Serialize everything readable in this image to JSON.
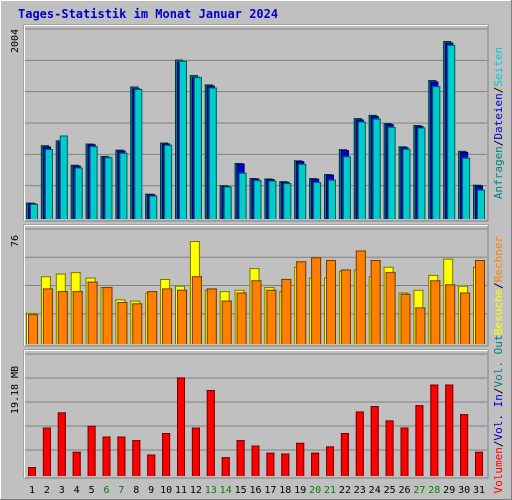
{
  "title": "Tages-Statistik im Monat Januar 2024",
  "colors": {
    "anfragen": "#008080",
    "dateien": "#0000cc",
    "seiten": "#00cccc",
    "besuche": "#ffff00",
    "rechner": "#ff8000",
    "volumen": "#ff0000",
    "voleIn": "#0000cc",
    "volOut": "#008080",
    "weekend": "#008000"
  },
  "chart_data": [
    {
      "type": "bar",
      "categories": [
        "1",
        "2",
        "3",
        "4",
        "5",
        "6",
        "7",
        "8",
        "9",
        "10",
        "11",
        "12",
        "13",
        "14",
        "15",
        "16",
        "17",
        "18",
        "19",
        "20",
        "21",
        "22",
        "23",
        "24",
        "25",
        "26",
        "27",
        "28",
        "29",
        "30",
        "31"
      ],
      "weekend_days": [
        "6",
        "7",
        "13",
        "14",
        "20",
        "21",
        "27",
        "28"
      ],
      "ymax_label": "2004",
      "ylim": [
        0,
        2004
      ],
      "legend": [
        "Anfragen",
        "Dateien",
        "Seiten"
      ],
      "legend_separator": "/",
      "series": [
        {
          "name": "Anfragen",
          "values": [
            184,
            830,
            885,
            610,
            850,
            710,
            780,
            1492,
            284,
            860,
            1795,
            1620,
            1515,
            380,
            630,
            461,
            456,
            425,
            660,
            460,
            505,
            785,
            1136,
            1172,
            1080,
            818,
            1058,
            1565,
            2004,
            767,
            385
          ]
        },
        {
          "name": "Dateien",
          "values": [
            178,
            815,
            870,
            600,
            840,
            700,
            770,
            1470,
            278,
            850,
            1770,
            1600,
            1500,
            372,
            622,
            455,
            450,
            418,
            650,
            452,
            498,
            775,
            1120,
            1158,
            1068,
            808,
            1045,
            1548,
            1985,
            755,
            378
          ]
        },
        {
          "name": "Seiten",
          "values": [
            170,
            788,
            940,
            580,
            820,
            695,
            745,
            1463,
            263,
            835,
            1780,
            1596,
            1480,
            365,
            520,
            437,
            432,
            404,
            620,
            416,
            442,
            705,
            1098,
            1130,
            1038,
            790,
            1030,
            1495,
            1960,
            690,
            330
          ]
        }
      ]
    },
    {
      "type": "bar",
      "categories": [
        "1",
        "2",
        "3",
        "4",
        "5",
        "6",
        "7",
        "8",
        "9",
        "10",
        "11",
        "12",
        "13",
        "14",
        "15",
        "16",
        "17",
        "18",
        "19",
        "20",
        "21",
        "22",
        "23",
        "24",
        "25",
        "26",
        "27",
        "28",
        "29",
        "30",
        "31"
      ],
      "ymax_label": "76",
      "ylim": [
        0,
        76
      ],
      "legend": [
        "Besuche",
        "Rechner"
      ],
      "legend_separator": "/",
      "series": [
        {
          "name": "Besuche",
          "values": [
            23,
            50,
            52,
            53,
            49,
            42,
            33,
            32,
            38,
            48,
            43,
            76,
            40,
            39,
            40,
            56,
            42,
            39,
            57,
            49,
            49,
            54,
            55,
            50,
            57,
            38,
            40,
            51,
            63,
            43,
            57
          ]
        },
        {
          "name": "Rechner",
          "values": [
            22,
            41,
            39,
            39,
            46,
            42,
            31,
            30,
            39,
            41,
            40,
            50,
            41,
            32,
            38,
            47,
            40,
            48,
            61,
            64,
            62,
            55,
            69,
            62,
            53,
            37,
            27,
            47,
            44,
            38,
            62
          ]
        }
      ]
    },
    {
      "type": "bar",
      "categories": [
        "1",
        "2",
        "3",
        "4",
        "5",
        "6",
        "7",
        "8",
        "9",
        "10",
        "11",
        "12",
        "13",
        "14",
        "15",
        "16",
        "17",
        "18",
        "19",
        "20",
        "21",
        "22",
        "23",
        "24",
        "25",
        "26",
        "27",
        "28",
        "29",
        "30",
        "31"
      ],
      "ymax_label": "19.18 MB",
      "ylim": [
        0,
        19.18
      ],
      "legend": [
        "Volumen",
        "Vol. In",
        "Vol. Out"
      ],
      "legend_separator": "/",
      "series": [
        {
          "name": "Volumen",
          "values": [
            1.56,
            8.44,
            11.09,
            4.22,
            8.75,
            6.88,
            6.88,
            6.25,
            3.75,
            7.5,
            17.19,
            8.44,
            15.0,
            3.28,
            6.25,
            5.31,
            4.06,
            3.91,
            5.78,
            4.06,
            5.16,
            7.5,
            11.25,
            12.19,
            9.69,
            8.44,
            12.34,
            15.94,
            15.94,
            10.78,
            4.22
          ]
        }
      ]
    }
  ],
  "x_axis_labels": [
    "1",
    "2",
    "3",
    "4",
    "5",
    "6",
    "7",
    "8",
    "9",
    "10",
    "11",
    "12",
    "13",
    "14",
    "15",
    "16",
    "17",
    "18",
    "19",
    "20",
    "21",
    "22",
    "23",
    "24",
    "25",
    "26",
    "27",
    "28",
    "29",
    "30",
    "31"
  ]
}
